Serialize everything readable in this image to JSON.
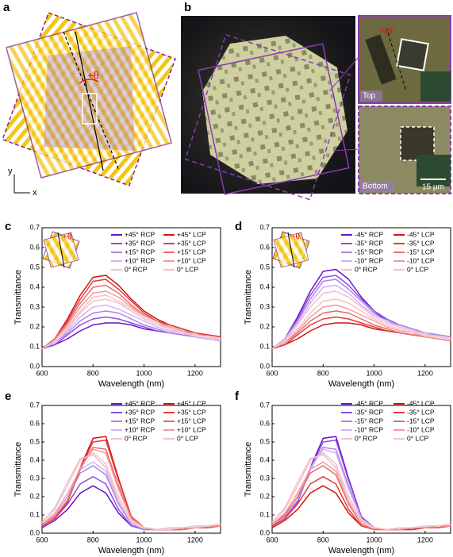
{
  "panels": {
    "a": {
      "label": "a",
      "angle": "+θ",
      "axis_x": "x",
      "axis_y": "y"
    },
    "b": {
      "label": "b",
      "top_angle": "+45°",
      "top": "Top",
      "bottom": "Bottom",
      "scale_bar": "15 µm"
    }
  },
  "chart_data": [
    {
      "type": "line",
      "panel_label": "c",
      "inset_label": "+θ",
      "x_label": "Wavelength (nm)",
      "y_label": "Transmittance",
      "x": [
        600,
        650,
        700,
        750,
        800,
        850,
        900,
        950,
        1000,
        1050,
        1100,
        1150,
        1200,
        1250,
        1300
      ],
      "xlim": [
        600,
        1300
      ],
      "xticks": [
        600,
        800,
        1000,
        1200
      ],
      "ylim": [
        0,
        0.7
      ],
      "yticks": [
        {
          "value": 0,
          "label": "0.0"
        },
        0.1,
        0.2,
        0.3,
        0.4,
        0.5,
        0.6,
        0.7
      ],
      "series": [
        {
          "name": "+45° RCP",
          "color": "#6a12c8",
          "values": [
            0.09,
            0.11,
            0.14,
            0.18,
            0.21,
            0.22,
            0.22,
            0.21,
            0.19,
            0.18,
            0.17,
            0.16,
            0.15,
            0.14,
            0.13
          ]
        },
        {
          "name": "+35° RCP",
          "color": "#8c4fe0",
          "values": [
            0.09,
            0.11,
            0.16,
            0.21,
            0.24,
            0.25,
            0.24,
            0.22,
            0.2,
            0.18,
            0.17,
            0.16,
            0.15,
            0.14,
            0.13
          ]
        },
        {
          "name": "+15° RCP",
          "color": "#b083ea",
          "values": [
            0.09,
            0.12,
            0.17,
            0.23,
            0.27,
            0.28,
            0.27,
            0.24,
            0.21,
            0.19,
            0.17,
            0.16,
            0.15,
            0.14,
            0.13
          ]
        },
        {
          "name": "+10° RCP",
          "color": "#d3b2f2",
          "values": [
            0.09,
            0.12,
            0.18,
            0.25,
            0.3,
            0.31,
            0.29,
            0.26,
            0.23,
            0.2,
            0.18,
            0.17,
            0.15,
            0.14,
            0.13
          ]
        },
        {
          "name": "0° RCP",
          "color": "#f2bfd3",
          "values": [
            0.09,
            0.13,
            0.19,
            0.27,
            0.33,
            0.34,
            0.32,
            0.28,
            0.24,
            0.21,
            0.19,
            0.17,
            0.16,
            0.15,
            0.14
          ]
        },
        {
          "name": "+45° LCP",
          "color": "#d41010",
          "values": [
            0.09,
            0.14,
            0.24,
            0.36,
            0.45,
            0.46,
            0.41,
            0.34,
            0.28,
            0.24,
            0.21,
            0.19,
            0.17,
            0.16,
            0.15
          ]
        },
        {
          "name": "+35° LCP",
          "color": "#e33b3b",
          "values": [
            0.09,
            0.14,
            0.23,
            0.34,
            0.43,
            0.44,
            0.39,
            0.33,
            0.27,
            0.23,
            0.21,
            0.19,
            0.17,
            0.16,
            0.15
          ]
        },
        {
          "name": "+15° LCP",
          "color": "#ea6b6b",
          "values": [
            0.09,
            0.14,
            0.22,
            0.32,
            0.4,
            0.41,
            0.37,
            0.31,
            0.26,
            0.23,
            0.2,
            0.18,
            0.17,
            0.15,
            0.14
          ]
        },
        {
          "name": "+10° LCP",
          "color": "#f19b9b",
          "values": [
            0.09,
            0.13,
            0.21,
            0.3,
            0.37,
            0.38,
            0.35,
            0.3,
            0.25,
            0.22,
            0.2,
            0.18,
            0.16,
            0.15,
            0.14
          ]
        },
        {
          "name": "0° LCP",
          "color": "#f6c3c3",
          "values": [
            0.09,
            0.13,
            0.2,
            0.28,
            0.35,
            0.36,
            0.33,
            0.29,
            0.25,
            0.22,
            0.19,
            0.17,
            0.16,
            0.15,
            0.14
          ]
        }
      ]
    },
    {
      "type": "line",
      "panel_label": "d",
      "inset_label": "-θ",
      "x_label": "Wavelength (nm)",
      "y_label": "Transmittance",
      "x": [
        600,
        650,
        700,
        750,
        800,
        850,
        900,
        950,
        1000,
        1050,
        1100,
        1150,
        1200,
        1250,
        1300
      ],
      "xlim": [
        600,
        1300
      ],
      "xticks": [
        600,
        800,
        1000,
        1200
      ],
      "ylim": [
        0,
        0.7
      ],
      "yticks": [
        {
          "value": 0,
          "label": "0.0"
        },
        0.1,
        0.2,
        0.3,
        0.4,
        0.5,
        0.6,
        0.7
      ],
      "series": [
        {
          "name": "-45° RCP",
          "color": "#6a12c8",
          "values": [
            0.09,
            0.14,
            0.25,
            0.38,
            0.48,
            0.49,
            0.44,
            0.35,
            0.28,
            0.23,
            0.2,
            0.18,
            0.16,
            0.15,
            0.14
          ]
        },
        {
          "name": "-35° RCP",
          "color": "#8c4fe0",
          "values": [
            0.09,
            0.14,
            0.24,
            0.36,
            0.45,
            0.46,
            0.41,
            0.34,
            0.28,
            0.24,
            0.21,
            0.19,
            0.17,
            0.16,
            0.15
          ]
        },
        {
          "name": "-15° RCP",
          "color": "#b083ea",
          "values": [
            0.09,
            0.14,
            0.23,
            0.34,
            0.43,
            0.44,
            0.39,
            0.33,
            0.27,
            0.23,
            0.21,
            0.19,
            0.17,
            0.16,
            0.15
          ]
        },
        {
          "name": "-10° RCP",
          "color": "#d3b2f2",
          "values": [
            0.09,
            0.14,
            0.22,
            0.32,
            0.4,
            0.41,
            0.37,
            0.31,
            0.26,
            0.23,
            0.2,
            0.18,
            0.17,
            0.15,
            0.14
          ]
        },
        {
          "name": "0° RCP",
          "color": "#f2bfd3",
          "values": [
            0.09,
            0.13,
            0.21,
            0.3,
            0.37,
            0.38,
            0.35,
            0.3,
            0.25,
            0.22,
            0.2,
            0.18,
            0.16,
            0.15,
            0.14
          ]
        },
        {
          "name": "-45° LCP",
          "color": "#d41010",
          "values": [
            0.09,
            0.11,
            0.14,
            0.18,
            0.21,
            0.22,
            0.22,
            0.21,
            0.19,
            0.18,
            0.17,
            0.16,
            0.15,
            0.14,
            0.13
          ]
        },
        {
          "name": "-35° LCP",
          "color": "#e33b3b",
          "values": [
            0.09,
            0.11,
            0.16,
            0.21,
            0.24,
            0.25,
            0.24,
            0.22,
            0.2,
            0.18,
            0.17,
            0.16,
            0.15,
            0.14,
            0.13
          ]
        },
        {
          "name": "-15° LCP",
          "color": "#ea6b6b",
          "values": [
            0.09,
            0.12,
            0.17,
            0.23,
            0.27,
            0.28,
            0.27,
            0.24,
            0.21,
            0.19,
            0.17,
            0.16,
            0.15,
            0.14,
            0.13
          ]
        },
        {
          "name": "-10° LCP",
          "color": "#f19b9b",
          "values": [
            0.09,
            0.12,
            0.18,
            0.25,
            0.3,
            0.31,
            0.29,
            0.26,
            0.23,
            0.2,
            0.18,
            0.17,
            0.15,
            0.14,
            0.13
          ]
        },
        {
          "name": "0° LCP",
          "color": "#f6c3c3",
          "values": [
            0.09,
            0.13,
            0.19,
            0.27,
            0.33,
            0.34,
            0.32,
            0.28,
            0.24,
            0.21,
            0.19,
            0.17,
            0.16,
            0.15,
            0.14
          ]
        }
      ]
    },
    {
      "type": "line",
      "panel_label": "e",
      "x_label": "Wavelength (nm)",
      "y_label": "Transmittance",
      "x": [
        600,
        650,
        700,
        750,
        800,
        850,
        900,
        950,
        1000,
        1050,
        1100,
        1150,
        1200,
        1250,
        1300
      ],
      "xlim": [
        600,
        1300
      ],
      "xticks": [
        600,
        800,
        1000,
        1200
      ],
      "ylim": [
        0,
        0.7
      ],
      "yticks": [
        {
          "value": 0,
          "label": "0.0"
        },
        0.1,
        0.2,
        0.3,
        0.4,
        0.5,
        0.6,
        0.7
      ],
      "series": [
        {
          "name": "+45° RCP",
          "color": "#6a12c8",
          "values": [
            0.03,
            0.07,
            0.13,
            0.22,
            0.26,
            0.22,
            0.11,
            0.04,
            0.02,
            0.02,
            0.02,
            0.02,
            0.03,
            0.03,
            0.04
          ]
        },
        {
          "name": "+35° RCP",
          "color": "#8c4fe0",
          "values": [
            0.04,
            0.08,
            0.16,
            0.27,
            0.31,
            0.27,
            0.13,
            0.04,
            0.02,
            0.02,
            0.02,
            0.02,
            0.03,
            0.03,
            0.04
          ]
        },
        {
          "name": "+15° RCP",
          "color": "#b083ea",
          "values": [
            0.05,
            0.1,
            0.2,
            0.33,
            0.37,
            0.32,
            0.16,
            0.05,
            0.02,
            0.02,
            0.02,
            0.03,
            0.03,
            0.03,
            0.04
          ]
        },
        {
          "name": "+10° RCP",
          "color": "#d3b2f2",
          "values": [
            0.05,
            0.11,
            0.22,
            0.35,
            0.39,
            0.34,
            0.17,
            0.06,
            0.03,
            0.02,
            0.02,
            0.03,
            0.03,
            0.04,
            0.04
          ]
        },
        {
          "name": "0° RCP",
          "color": "#f2bfd3",
          "values": [
            0.06,
            0.14,
            0.28,
            0.41,
            0.43,
            0.36,
            0.18,
            0.06,
            0.03,
            0.02,
            0.03,
            0.03,
            0.04,
            0.04,
            0.05
          ]
        },
        {
          "name": "+45° LCP",
          "color": "#d41010",
          "values": [
            0.04,
            0.08,
            0.17,
            0.36,
            0.52,
            0.53,
            0.3,
            0.09,
            0.03,
            0.02,
            0.02,
            0.02,
            0.03,
            0.03,
            0.04
          ]
        },
        {
          "name": "+35° LCP",
          "color": "#e33b3b",
          "values": [
            0.04,
            0.08,
            0.17,
            0.35,
            0.5,
            0.51,
            0.29,
            0.09,
            0.03,
            0.02,
            0.02,
            0.02,
            0.03,
            0.03,
            0.04
          ]
        },
        {
          "name": "+15° LCP",
          "color": "#ea6b6b",
          "values": [
            0.05,
            0.09,
            0.18,
            0.35,
            0.47,
            0.46,
            0.26,
            0.08,
            0.03,
            0.02,
            0.02,
            0.02,
            0.03,
            0.03,
            0.04
          ]
        },
        {
          "name": "+10° LCP",
          "color": "#f19b9b",
          "values": [
            0.05,
            0.1,
            0.2,
            0.36,
            0.46,
            0.44,
            0.24,
            0.08,
            0.03,
            0.02,
            0.02,
            0.03,
            0.03,
            0.04,
            0.04
          ]
        },
        {
          "name": "0° LCP",
          "color": "#f6c3c3",
          "values": [
            0.06,
            0.13,
            0.26,
            0.4,
            0.44,
            0.38,
            0.2,
            0.07,
            0.03,
            0.02,
            0.02,
            0.03,
            0.03,
            0.04,
            0.05
          ]
        }
      ]
    },
    {
      "type": "line",
      "panel_label": "f",
      "x_label": "Wavelength (nm)",
      "y_label": "Transmittance",
      "x": [
        600,
        650,
        700,
        750,
        800,
        850,
        900,
        950,
        1000,
        1050,
        1100,
        1150,
        1200,
        1250,
        1300
      ],
      "xlim": [
        600,
        1300
      ],
      "xticks": [
        600,
        800,
        1000,
        1200
      ],
      "ylim": [
        0,
        0.7
      ],
      "yticks": [
        {
          "value": 0,
          "label": "0.0"
        },
        0.1,
        0.2,
        0.3,
        0.4,
        0.5,
        0.6,
        0.7
      ],
      "series": [
        {
          "name": "-45° RCP",
          "color": "#6a12c8",
          "values": [
            0.04,
            0.08,
            0.17,
            0.36,
            0.52,
            0.53,
            0.3,
            0.09,
            0.03,
            0.02,
            0.02,
            0.02,
            0.03,
            0.03,
            0.04
          ]
        },
        {
          "name": "-35° RCP",
          "color": "#8c4fe0",
          "values": [
            0.04,
            0.08,
            0.17,
            0.35,
            0.5,
            0.51,
            0.29,
            0.09,
            0.03,
            0.02,
            0.02,
            0.02,
            0.03,
            0.03,
            0.04
          ]
        },
        {
          "name": "-15° RCP",
          "color": "#b083ea",
          "values": [
            0.05,
            0.09,
            0.18,
            0.35,
            0.47,
            0.46,
            0.26,
            0.08,
            0.03,
            0.02,
            0.02,
            0.02,
            0.03,
            0.03,
            0.04
          ]
        },
        {
          "name": "-10° RCP",
          "color": "#d3b2f2",
          "values": [
            0.05,
            0.1,
            0.2,
            0.36,
            0.46,
            0.44,
            0.24,
            0.08,
            0.03,
            0.02,
            0.02,
            0.03,
            0.03,
            0.04,
            0.04
          ]
        },
        {
          "name": "0° RCP",
          "color": "#f2bfd3",
          "values": [
            0.06,
            0.13,
            0.26,
            0.4,
            0.44,
            0.38,
            0.2,
            0.07,
            0.03,
            0.02,
            0.02,
            0.03,
            0.03,
            0.04,
            0.05
          ]
        },
        {
          "name": "-45° LCP",
          "color": "#d41010",
          "values": [
            0.03,
            0.07,
            0.13,
            0.22,
            0.26,
            0.22,
            0.11,
            0.04,
            0.02,
            0.02,
            0.02,
            0.02,
            0.03,
            0.03,
            0.04
          ]
        },
        {
          "name": "-35° LCP",
          "color": "#e33b3b",
          "values": [
            0.04,
            0.08,
            0.16,
            0.27,
            0.31,
            0.27,
            0.13,
            0.04,
            0.02,
            0.02,
            0.02,
            0.02,
            0.03,
            0.03,
            0.04
          ]
        },
        {
          "name": "-15° LCP",
          "color": "#ea6b6b",
          "values": [
            0.05,
            0.1,
            0.2,
            0.33,
            0.37,
            0.32,
            0.16,
            0.05,
            0.02,
            0.02,
            0.02,
            0.03,
            0.03,
            0.03,
            0.04
          ]
        },
        {
          "name": "-10° LCP",
          "color": "#f19b9b",
          "values": [
            0.05,
            0.11,
            0.22,
            0.35,
            0.39,
            0.34,
            0.17,
            0.06,
            0.03,
            0.02,
            0.02,
            0.03,
            0.03,
            0.04,
            0.04
          ]
        },
        {
          "name": "0° LCP",
          "color": "#f6c3c3",
          "values": [
            0.06,
            0.14,
            0.28,
            0.41,
            0.43,
            0.36,
            0.18,
            0.06,
            0.03,
            0.02,
            0.03,
            0.03,
            0.04,
            0.04,
            0.05
          ]
        }
      ]
    }
  ]
}
